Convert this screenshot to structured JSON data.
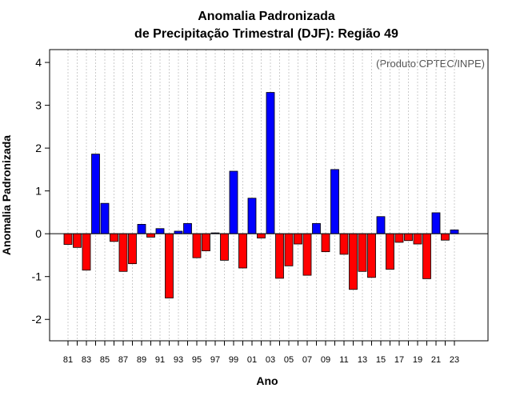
{
  "chart_data": {
    "type": "bar",
    "title": "Anomalia Padronizada",
    "subtitle": "de Precipitação Trimestral (DJF): Região 49",
    "xlabel": "Ano",
    "ylabel": "Anomalia Padronizada",
    "annotation": "(Produto:CPTEC/INPE)",
    "ylim": [
      -2.5,
      4.3
    ],
    "yticks": [
      "-2",
      "-1",
      "0",
      "1",
      "2",
      "3",
      "4"
    ],
    "grid": true,
    "colors": {
      "positive": "#0000ff",
      "negative": "#ff0000",
      "grid": "#cccccc"
    },
    "categories": [
      "81",
      "82",
      "83",
      "84",
      "85",
      "86",
      "87",
      "88",
      "89",
      "90",
      "91",
      "92",
      "93",
      "94",
      "95",
      "96",
      "97",
      "98",
      "99",
      "00",
      "01",
      "02",
      "03",
      "04",
      "05",
      "06",
      "07",
      "08",
      "09",
      "10",
      "11",
      "12",
      "13",
      "14",
      "15",
      "16",
      "17",
      "18",
      "19",
      "20",
      "21",
      "22",
      "23"
    ],
    "xtick_labels": [
      "81",
      "83",
      "85",
      "87",
      "89",
      "91",
      "93",
      "95",
      "97",
      "99",
      "01",
      "03",
      "05",
      "07",
      "09",
      "11",
      "13",
      "15",
      "17",
      "19",
      "21",
      "23"
    ],
    "values": [
      -0.25,
      -0.32,
      -0.85,
      1.86,
      0.71,
      -0.18,
      -0.88,
      -0.7,
      0.22,
      -0.08,
      0.12,
      -1.5,
      0.06,
      0.24,
      -0.56,
      -0.4,
      0.02,
      -0.62,
      1.46,
      -0.8,
      0.83,
      -0.1,
      3.3,
      -1.04,
      -0.75,
      -0.24,
      -0.97,
      0.24,
      -0.42,
      1.5,
      -0.48,
      -1.3,
      -0.88,
      -1.02,
      0.4,
      -0.83,
      -0.2,
      -0.16,
      -0.24,
      -1.05,
      0.49,
      -0.15,
      0.09
    ]
  }
}
